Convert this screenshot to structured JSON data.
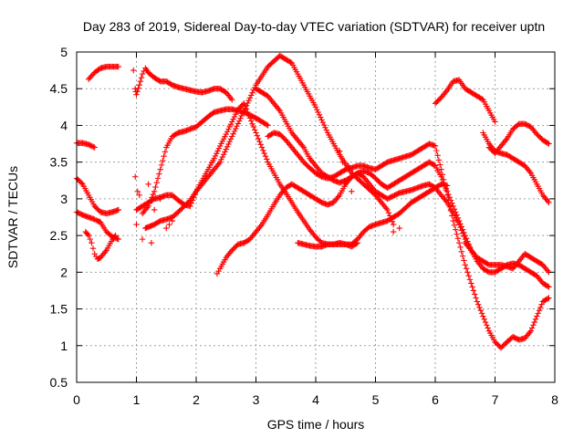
{
  "chart_data": {
    "type": "scatter",
    "title": "Day 283 of 2019, Sidereal Day-to-day VTEC variation (SDTVAR) for receiver uptn",
    "xlabel": "GPS time / hours",
    "ylabel": "SDTVAR / TECUs",
    "xlim": [
      0,
      8
    ],
    "ylim": [
      0.5,
      5
    ],
    "xticks": [
      "0",
      "1",
      "2",
      "3",
      "4",
      "5",
      "6",
      "7",
      "8"
    ],
    "yticks": [
      "0.5",
      "1",
      "1.5",
      "2",
      "2.5",
      "3",
      "3.5",
      "4",
      "4.5",
      "5"
    ],
    "grid": true,
    "marker": "+",
    "marker_color": "#ff0000",
    "series": [
      {
        "name": "s1",
        "x": [
          0.0,
          0.1,
          0.2,
          0.3
        ],
        "y": [
          3.76,
          3.76,
          3.74,
          3.7
        ]
      },
      {
        "name": "s2",
        "x": [
          0.0,
          0.1,
          0.2,
          0.3,
          0.4,
          0.5,
          0.6,
          0.7
        ],
        "y": [
          3.28,
          3.2,
          3.05,
          2.9,
          2.82,
          2.8,
          2.82,
          2.85
        ]
      },
      {
        "name": "s3",
        "x": [
          0.0,
          0.1,
          0.2,
          0.3,
          0.35,
          0.4,
          0.5,
          0.6,
          0.7
        ],
        "y": [
          2.82,
          2.78,
          2.75,
          2.72,
          2.7,
          2.68,
          2.55,
          2.48,
          2.45
        ]
      },
      {
        "name": "s4",
        "x": [
          0.15,
          0.2,
          0.25,
          0.3,
          0.35,
          0.4,
          0.5,
          0.6,
          0.65
        ],
        "y": [
          2.55,
          2.5,
          2.4,
          2.25,
          2.18,
          2.2,
          2.3,
          2.45,
          2.5
        ]
      },
      {
        "name": "s5",
        "x": [
          0.2,
          0.3,
          0.4,
          0.5,
          0.6,
          0.7
        ],
        "y": [
          4.63,
          4.72,
          4.78,
          4.8,
          4.8,
          4.8
        ]
      },
      {
        "name": "s6",
        "x": [
          0.98,
          1.0,
          1.05,
          1.1,
          1.15,
          1.2,
          1.3,
          1.4,
          1.5,
          1.6,
          1.7,
          1.8,
          1.9,
          2.0,
          2.1,
          2.2,
          2.3,
          2.4,
          2.5,
          2.6
        ],
        "y": [
          4.5,
          4.42,
          4.55,
          4.7,
          4.78,
          4.72,
          4.65,
          4.6,
          4.6,
          4.55,
          4.52,
          4.5,
          4.48,
          4.46,
          4.45,
          4.47,
          4.5,
          4.5,
          4.45,
          4.35
        ]
      },
      {
        "name": "s7",
        "x": [
          1.0,
          1.1,
          1.2,
          1.3,
          1.4,
          1.5,
          1.6,
          1.7,
          1.8,
          1.9,
          2.0,
          2.2,
          2.4,
          2.6,
          2.8,
          3.0,
          3.2,
          3.4,
          3.6,
          3.8,
          4.0,
          4.2,
          4.4,
          4.6,
          4.8,
          5.0,
          5.2,
          5.3
        ],
        "y": [
          2.85,
          2.9,
          2.95,
          3.0,
          3.02,
          3.05,
          3.05,
          2.98,
          2.92,
          2.9,
          3.1,
          3.3,
          3.5,
          3.85,
          4.2,
          4.55,
          4.8,
          4.95,
          4.85,
          4.55,
          4.25,
          3.9,
          3.6,
          3.35,
          3.2,
          3.05,
          2.85,
          2.65
        ]
      },
      {
        "name": "s8",
        "x": [
          1.1,
          1.2,
          1.3,
          1.4,
          1.5,
          1.6,
          1.7,
          1.8,
          1.9,
          2.0,
          2.1,
          2.2,
          2.3,
          2.4,
          2.5,
          2.6,
          2.7,
          2.8,
          2.9,
          3.0,
          3.1,
          3.2
        ],
        "y": [
          2.8,
          2.9,
          3.1,
          3.4,
          3.7,
          3.85,
          3.9,
          3.92,
          3.95,
          3.98,
          4.05,
          4.12,
          4.18,
          4.2,
          4.22,
          4.22,
          4.2,
          4.18,
          4.14,
          4.1,
          4.05,
          4.0
        ]
      },
      {
        "name": "s9",
        "x": [
          1.15,
          1.3,
          1.4,
          1.5,
          1.6,
          1.7,
          1.8,
          1.9,
          2.0,
          2.1,
          2.2,
          2.3,
          2.4,
          2.5,
          2.6,
          2.7,
          2.8,
          2.9,
          3.0,
          3.1,
          3.2,
          3.3,
          3.4,
          3.5,
          3.6,
          3.7,
          3.8,
          3.9,
          4.0,
          4.1,
          4.2,
          4.3,
          4.4,
          4.5,
          4.6,
          4.7,
          4.8,
          4.9,
          5.0,
          5.2,
          5.4,
          5.6,
          5.8,
          6.0,
          6.1,
          6.2
        ],
        "y": [
          2.6,
          2.65,
          2.7,
          2.72,
          2.75,
          2.82,
          2.9,
          2.98,
          3.1,
          3.25,
          3.4,
          3.55,
          3.72,
          3.88,
          4.05,
          4.22,
          4.3,
          4.1,
          3.9,
          3.7,
          3.5,
          3.35,
          3.2,
          3.08,
          2.95,
          2.82,
          2.7,
          2.58,
          2.48,
          2.4,
          2.38,
          2.38,
          2.38,
          2.38,
          2.38,
          2.45,
          2.55,
          2.62,
          2.65,
          2.7,
          2.8,
          2.95,
          3.05,
          3.15,
          3.2,
          3.18
        ]
      },
      {
        "name": "s10",
        "x": [
          2.35,
          2.4,
          2.5,
          2.6,
          2.7,
          2.8,
          2.9,
          3.0,
          3.1,
          3.2,
          3.3,
          3.4,
          3.5,
          3.6,
          3.7,
          3.8,
          3.9,
          4.0,
          4.1,
          4.2,
          4.3,
          4.4,
          4.5,
          4.6,
          4.7,
          4.8,
          4.9,
          5.0,
          5.2,
          5.4,
          5.6,
          5.8,
          5.9,
          6.0,
          6.1,
          6.2,
          6.3,
          6.4,
          6.5,
          6.6
        ],
        "y": [
          1.98,
          2.05,
          2.2,
          2.3,
          2.38,
          2.4,
          2.45,
          2.55,
          2.65,
          2.78,
          2.92,
          3.05,
          3.15,
          3.2,
          3.15,
          3.1,
          3.05,
          3.0,
          2.95,
          2.92,
          2.95,
          3.05,
          3.2,
          3.3,
          3.35,
          3.3,
          3.2,
          3.1,
          3.0,
          3.08,
          3.12,
          3.18,
          3.2,
          3.15,
          3.05,
          2.95,
          2.8,
          2.65,
          2.45,
          2.3
        ]
      },
      {
        "name": "s11",
        "x": [
          3.0,
          3.1,
          3.2,
          3.3,
          3.4,
          3.5,
          3.6,
          3.7,
          3.8,
          3.9,
          4.0,
          4.1,
          4.2,
          4.3,
          4.4,
          4.5,
          4.6,
          4.7,
          4.8,
          4.9,
          5.0,
          5.1,
          5.2,
          5.4,
          5.6,
          5.8,
          5.9,
          6.0,
          6.1,
          6.2,
          6.3,
          6.4,
          6.5,
          6.6,
          6.7,
          6.8,
          6.9,
          7.0,
          7.1,
          7.2,
          7.3,
          7.4,
          7.5,
          7.6,
          7.7,
          7.8,
          7.9
        ],
        "y": [
          4.5,
          4.45,
          4.4,
          4.3,
          4.2,
          4.05,
          3.9,
          3.8,
          3.7,
          3.55,
          3.45,
          3.35,
          3.3,
          3.25,
          3.22,
          3.25,
          3.3,
          3.35,
          3.38,
          3.35,
          3.28,
          3.2,
          3.15,
          3.25,
          3.35,
          3.45,
          3.5,
          3.45,
          3.3,
          3.1,
          2.9,
          2.7,
          2.5,
          2.3,
          2.15,
          2.05,
          2.0,
          2.0,
          2.05,
          2.1,
          2.12,
          2.1,
          2.05,
          2.0,
          1.95,
          1.85,
          1.8
        ]
      },
      {
        "name": "s12",
        "x": [
          3.2,
          3.3,
          3.4,
          3.5,
          3.6,
          3.7,
          3.8,
          3.9,
          4.0,
          4.1,
          4.2,
          4.3,
          4.4,
          4.5,
          4.6,
          4.7,
          4.8,
          4.9,
          5.0,
          5.1,
          5.2,
          5.4,
          5.6,
          5.8,
          5.9,
          6.0,
          6.1,
          6.2,
          6.3,
          6.4,
          6.5,
          6.6,
          6.7,
          6.8,
          6.9,
          7.0,
          7.1,
          7.2,
          7.3,
          7.4,
          7.5,
          7.6,
          7.7,
          7.8,
          7.9
        ],
        "y": [
          3.85,
          3.9,
          3.88,
          3.8,
          3.7,
          3.6,
          3.5,
          3.42,
          3.35,
          3.3,
          3.28,
          3.3,
          3.35,
          3.4,
          3.42,
          3.45,
          3.45,
          3.42,
          3.4,
          3.45,
          3.5,
          3.55,
          3.6,
          3.7,
          3.75,
          3.72,
          3.4,
          3.05,
          2.7,
          2.4,
          2.1,
          1.85,
          1.6,
          1.4,
          1.2,
          1.05,
          0.97,
          1.05,
          1.12,
          1.08,
          1.1,
          1.2,
          1.4,
          1.6,
          1.65
        ]
      },
      {
        "name": "s13",
        "x": [
          3.7,
          3.8,
          3.9,
          4.0,
          4.1,
          4.2,
          4.3,
          4.4,
          4.5,
          4.6,
          4.7
        ],
        "y": [
          2.4,
          2.38,
          2.36,
          2.35,
          2.35,
          2.38,
          2.38,
          2.4,
          2.38,
          2.35,
          2.4
        ]
      },
      {
        "name": "s14",
        "x": [
          6.0,
          6.1,
          6.2,
          6.3,
          6.4,
          6.5,
          6.6,
          6.7,
          6.8,
          6.9,
          7.0
        ],
        "y": [
          4.3,
          4.38,
          4.48,
          4.6,
          4.62,
          4.5,
          4.45,
          4.4,
          4.35,
          4.2,
          4.05
        ]
      },
      {
        "name": "s15",
        "x": [
          6.9,
          7.0,
          7.1,
          7.2,
          7.3,
          7.4,
          7.5,
          7.6,
          7.7,
          7.8,
          7.9
        ],
        "y": [
          3.7,
          3.62,
          3.72,
          3.82,
          3.95,
          4.02,
          4.02,
          3.98,
          3.88,
          3.8,
          3.75
        ]
      },
      {
        "name": "s16",
        "x": [
          6.8,
          6.9,
          7.0,
          7.1,
          7.2,
          7.3,
          7.4,
          7.5,
          7.6,
          7.7,
          7.8,
          7.9
        ],
        "y": [
          3.9,
          3.75,
          3.65,
          3.62,
          3.6,
          3.55,
          3.5,
          3.45,
          3.35,
          3.2,
          3.05,
          2.95
        ]
      },
      {
        "name": "s17",
        "x": [
          6.5,
          6.6,
          6.7,
          6.8,
          6.9,
          7.0,
          7.1,
          7.2,
          7.3,
          7.4,
          7.5,
          7.6,
          7.7,
          7.8,
          7.9
        ],
        "y": [
          2.4,
          2.3,
          2.2,
          2.15,
          2.1,
          2.1,
          2.1,
          2.08,
          2.05,
          2.15,
          2.25,
          2.2,
          2.15,
          2.1,
          2.0
        ]
      }
    ],
    "scattered_points": {
      "x": [
        0.95,
        1.0,
        1.05,
        1.1,
        1.2,
        1.3,
        1.4,
        1.5,
        1.6,
        4.4,
        4.45,
        4.5,
        4.6,
        4.55,
        0.98,
        1.02,
        1.25,
        1.55,
        5.3,
        5.4
      ],
      "y": [
        4.75,
        2.65,
        3.05,
        2.45,
        3.2,
        2.85,
        3.0,
        2.6,
        2.7,
        3.65,
        3.5,
        3.2,
        3.1,
        3.45,
        3.3,
        3.1,
        2.4,
        2.65,
        2.55,
        2.6
      ]
    }
  }
}
